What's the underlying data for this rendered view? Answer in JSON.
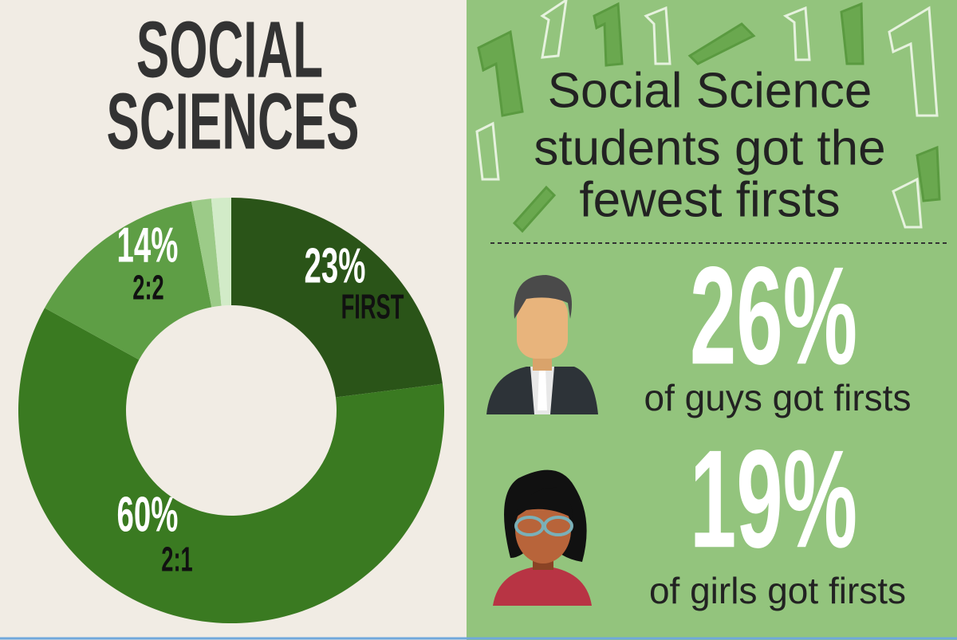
{
  "chart_data": {
    "type": "donut",
    "title": [
      "SOCIAL",
      "SCIENCES"
    ],
    "categories": [
      "FIRST",
      "2:1",
      "2:2",
      null,
      null
    ],
    "values": [
      23,
      60,
      14,
      1.5,
      1.5
    ],
    "value_labels": [
      "23%",
      "60%",
      "14%",
      null,
      null
    ],
    "colors": [
      "#2a5418",
      "#3a7a21",
      "#5e9e45",
      "#9ccb88",
      "#d2ebc8"
    ]
  },
  "panel": {
    "headline": [
      "Social Science",
      "students got the",
      "fewest firsts"
    ],
    "stats": [
      {
        "figure": "26%",
        "caption": "of guys got firsts"
      },
      {
        "figure": "19%",
        "caption": "of girls got firsts"
      }
    ]
  }
}
